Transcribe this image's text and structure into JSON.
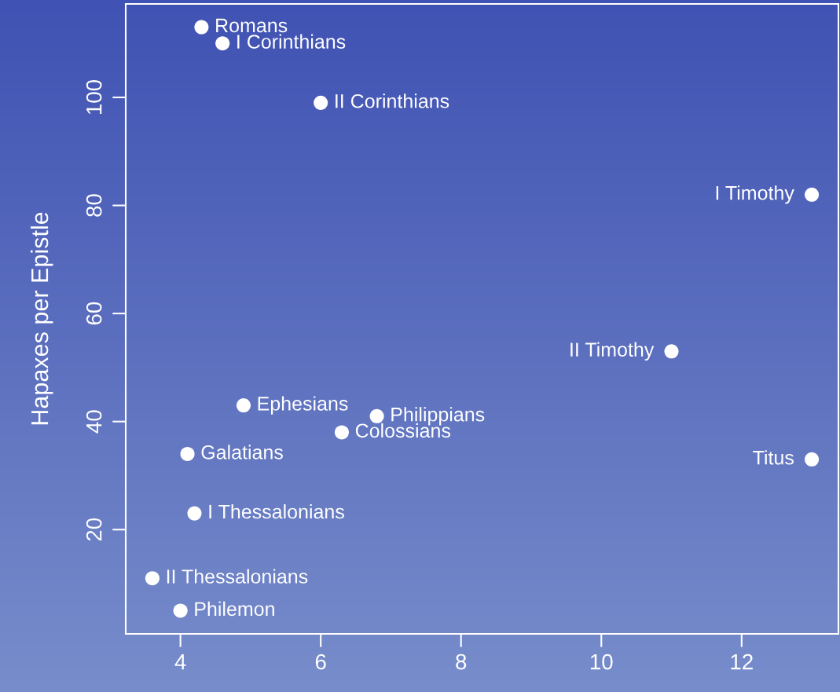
{
  "chart_data": {
    "type": "scatter",
    "ylabel": "Hapaxes per Epistle",
    "x": [
      4.3,
      4.6,
      6.0,
      13.0,
      11.0,
      4.9,
      6.8,
      6.3,
      13.0,
      4.1,
      4.2,
      3.6,
      4.0
    ],
    "series": [
      {
        "color": "#ffffff",
        "values": [
          113,
          110,
          99,
          82,
          53,
          43,
          41,
          38,
          33,
          34,
          23,
          11,
          5
        ]
      }
    ],
    "annotations": [
      {
        "text": "Romans",
        "x": 4.3,
        "y": 113
      },
      {
        "text": "I Corinthians",
        "x": 4.6,
        "y": 110
      },
      {
        "text": "II Corinthians",
        "x": 6.0,
        "y": 99
      },
      {
        "text": "I Timothy",
        "x": 13.0,
        "y": 82
      },
      {
        "text": "II Timothy",
        "x": 11.0,
        "y": 53
      },
      {
        "text": "Ephesians",
        "x": 4.9,
        "y": 43
      },
      {
        "text": "Philippians",
        "x": 6.8,
        "y": 41
      },
      {
        "text": "Colossians",
        "x": 6.3,
        "y": 38
      },
      {
        "text": "Titus",
        "x": 13.0,
        "y": 33
      },
      {
        "text": "Galatians",
        "x": 4.1,
        "y": 34
      },
      {
        "text": "I Thessalonians",
        "x": 4.2,
        "y": 23
      },
      {
        "text": "II Thessalonians",
        "x": 3.6,
        "y": 11
      },
      {
        "text": "Philemon",
        "x": 4.0,
        "y": 5
      }
    ],
    "xlim": [
      3.22,
      13.38
    ],
    "ylim": [
      0.7,
      117.3
    ],
    "xticks": [
      4,
      6,
      8,
      10,
      12
    ],
    "yticks": [
      20,
      40,
      60,
      80,
      100
    ],
    "marker": "circle",
    "grid": false,
    "legend": false
  }
}
